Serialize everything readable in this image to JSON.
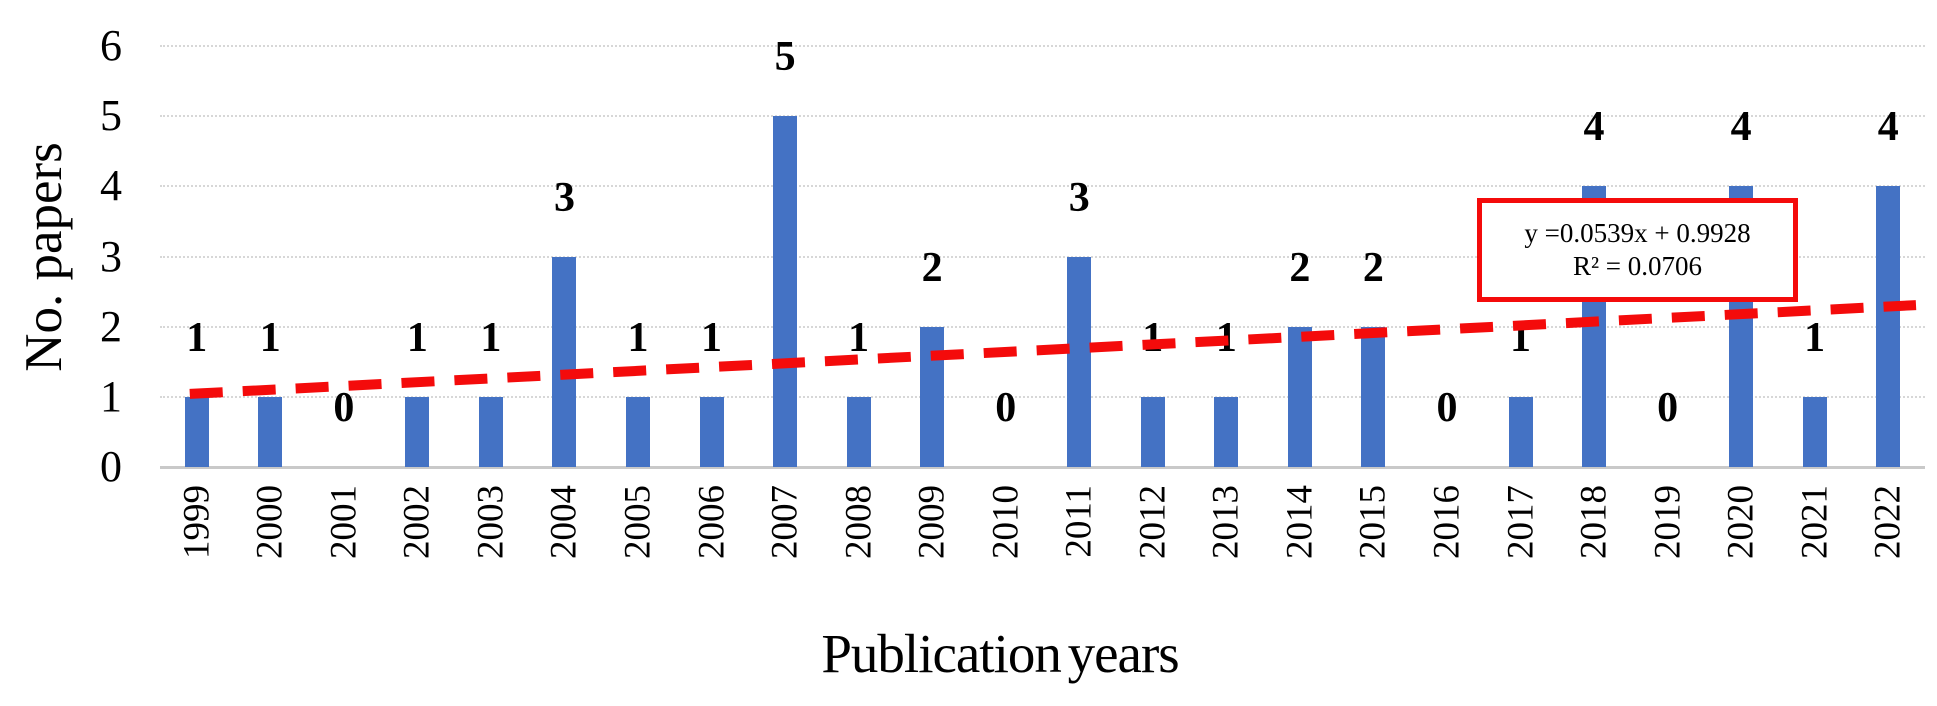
{
  "chart_data": {
    "type": "bar",
    "title": "",
    "xlabel": "Publication years",
    "ylabel": "No. papers",
    "categories": [
      "1999",
      "2000",
      "2001",
      "2002",
      "2003",
      "2004",
      "2005",
      "2006",
      "2007",
      "2008",
      "2009",
      "2010",
      "2011",
      "2012",
      "2013",
      "2014",
      "2015",
      "2016",
      "2017",
      "2018",
      "2019",
      "2020",
      "2021",
      "2022"
    ],
    "values": [
      1,
      1,
      0,
      1,
      1,
      3,
      1,
      1,
      5,
      1,
      2,
      0,
      3,
      1,
      1,
      2,
      2,
      0,
      1,
      4,
      0,
      4,
      1,
      4
    ],
    "data_labels": [
      1,
      1,
      0,
      1,
      1,
      3,
      1,
      1,
      5,
      1,
      2,
      0,
      3,
      1,
      1,
      2,
      2,
      0,
      1,
      4,
      0,
      4,
      1,
      4
    ],
    "ylim": [
      0,
      6
    ],
    "y_ticks": [
      "0",
      "1",
      "2",
      "3",
      "4",
      "5",
      "6"
    ],
    "grid": "horizontal-dotted",
    "legend": "none",
    "bar_color": "#4472C4",
    "gridline_color": "#d7d7d7",
    "trendline": {
      "type": "linear",
      "slope": 0.0539,
      "intercept": 0.9928,
      "equation": "y =0.0539x + 0.9928",
      "r_squared": "R² = 0.0706",
      "color": "#f40b0b",
      "style": "dashed"
    }
  }
}
